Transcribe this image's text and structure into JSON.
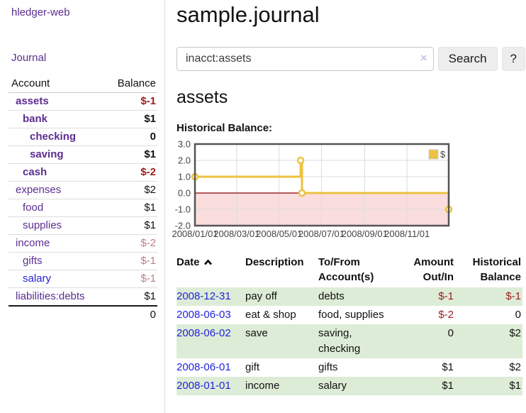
{
  "app_title": "hledger-web",
  "colors": {
    "accent_purple": "#5c2d91",
    "link_blue": "#2222dd",
    "negative_strong": "#9d1c1c",
    "negative_soft": "#bf7d7d",
    "row_green": "#ddecd6",
    "chart_line": "#edc240",
    "chart_negative_region": "#fadddd",
    "chart_zero_line": "#8b0000"
  },
  "sidebar": {
    "journal_link": "Journal",
    "table": {
      "account_header": "Account",
      "balance_header": "Balance",
      "rows": [
        {
          "name": "assets",
          "balance": "$-1"
        },
        {
          "name": "bank",
          "balance": "$1"
        },
        {
          "name": "checking",
          "balance": "0"
        },
        {
          "name": "saving",
          "balance": "$1"
        },
        {
          "name": "cash",
          "balance": "$-2"
        },
        {
          "name": "expenses",
          "balance": "$2"
        },
        {
          "name": "food",
          "balance": "$1"
        },
        {
          "name": "supplies",
          "balance": "$1"
        },
        {
          "name": "income",
          "balance": "$-2"
        },
        {
          "name": "gifts",
          "balance": "$-1"
        },
        {
          "name": "salary",
          "balance": "$-1"
        },
        {
          "name": "liabilities:debts",
          "balance": "$1"
        }
      ],
      "total": "0"
    }
  },
  "main": {
    "title": "sample.journal",
    "search": {
      "value": "inacct:assets",
      "clear_icon": "×",
      "search_button": "Search",
      "help_button": "?"
    },
    "heading": "assets",
    "chart_title": "Historical Balance:"
  },
  "chart_data": {
    "type": "line",
    "step": true,
    "title": "Historical Balance:",
    "x_type": "date",
    "xlim": [
      "2008-01-01",
      "2008-12-31"
    ],
    "ylim": [
      -2.0,
      3.0
    ],
    "yticks": [
      3.0,
      2.0,
      1.0,
      0.0,
      -1.0,
      -2.0
    ],
    "xtick_labels": [
      "2008/01/01",
      "2008/03/01",
      "2008/05/01",
      "2008/07/01",
      "2008/09/01",
      "2008/11/01"
    ],
    "grid": true,
    "legend": {
      "position": "top-right",
      "label": "$"
    },
    "series": [
      {
        "name": "$",
        "color": "#edc240",
        "points": [
          [
            "2008-01-01",
            1.0
          ],
          [
            "2008-06-01",
            2.0
          ],
          [
            "2008-06-03",
            0.0
          ],
          [
            "2008-12-31",
            -1.0
          ]
        ]
      }
    ],
    "negative_region_color": "#fadddd",
    "zero_line_color": "#8b0000"
  },
  "register": {
    "headers": {
      "date": "Date",
      "description": "Description",
      "tofrom": "To/From Account(s)",
      "amount": "Amount Out/In",
      "historical": "Historical Balance"
    },
    "rows": [
      {
        "date": "2008-12-31",
        "description": "pay off",
        "tofrom": "debts",
        "amount": "$-1",
        "historical": "$-1"
      },
      {
        "date": "2008-06-03",
        "description": "eat & shop",
        "tofrom": "food, supplies",
        "amount": "$-2",
        "historical": "0"
      },
      {
        "date": "2008-06-02",
        "description": "save",
        "tofrom": "saving, checking",
        "amount": "0",
        "historical": "$2"
      },
      {
        "date": "2008-06-01",
        "description": "gift",
        "tofrom": "gifts",
        "amount": "$1",
        "historical": "$2"
      },
      {
        "date": "2008-01-01",
        "description": "income",
        "tofrom": "salary",
        "amount": "$1",
        "historical": "$1"
      }
    ]
  }
}
